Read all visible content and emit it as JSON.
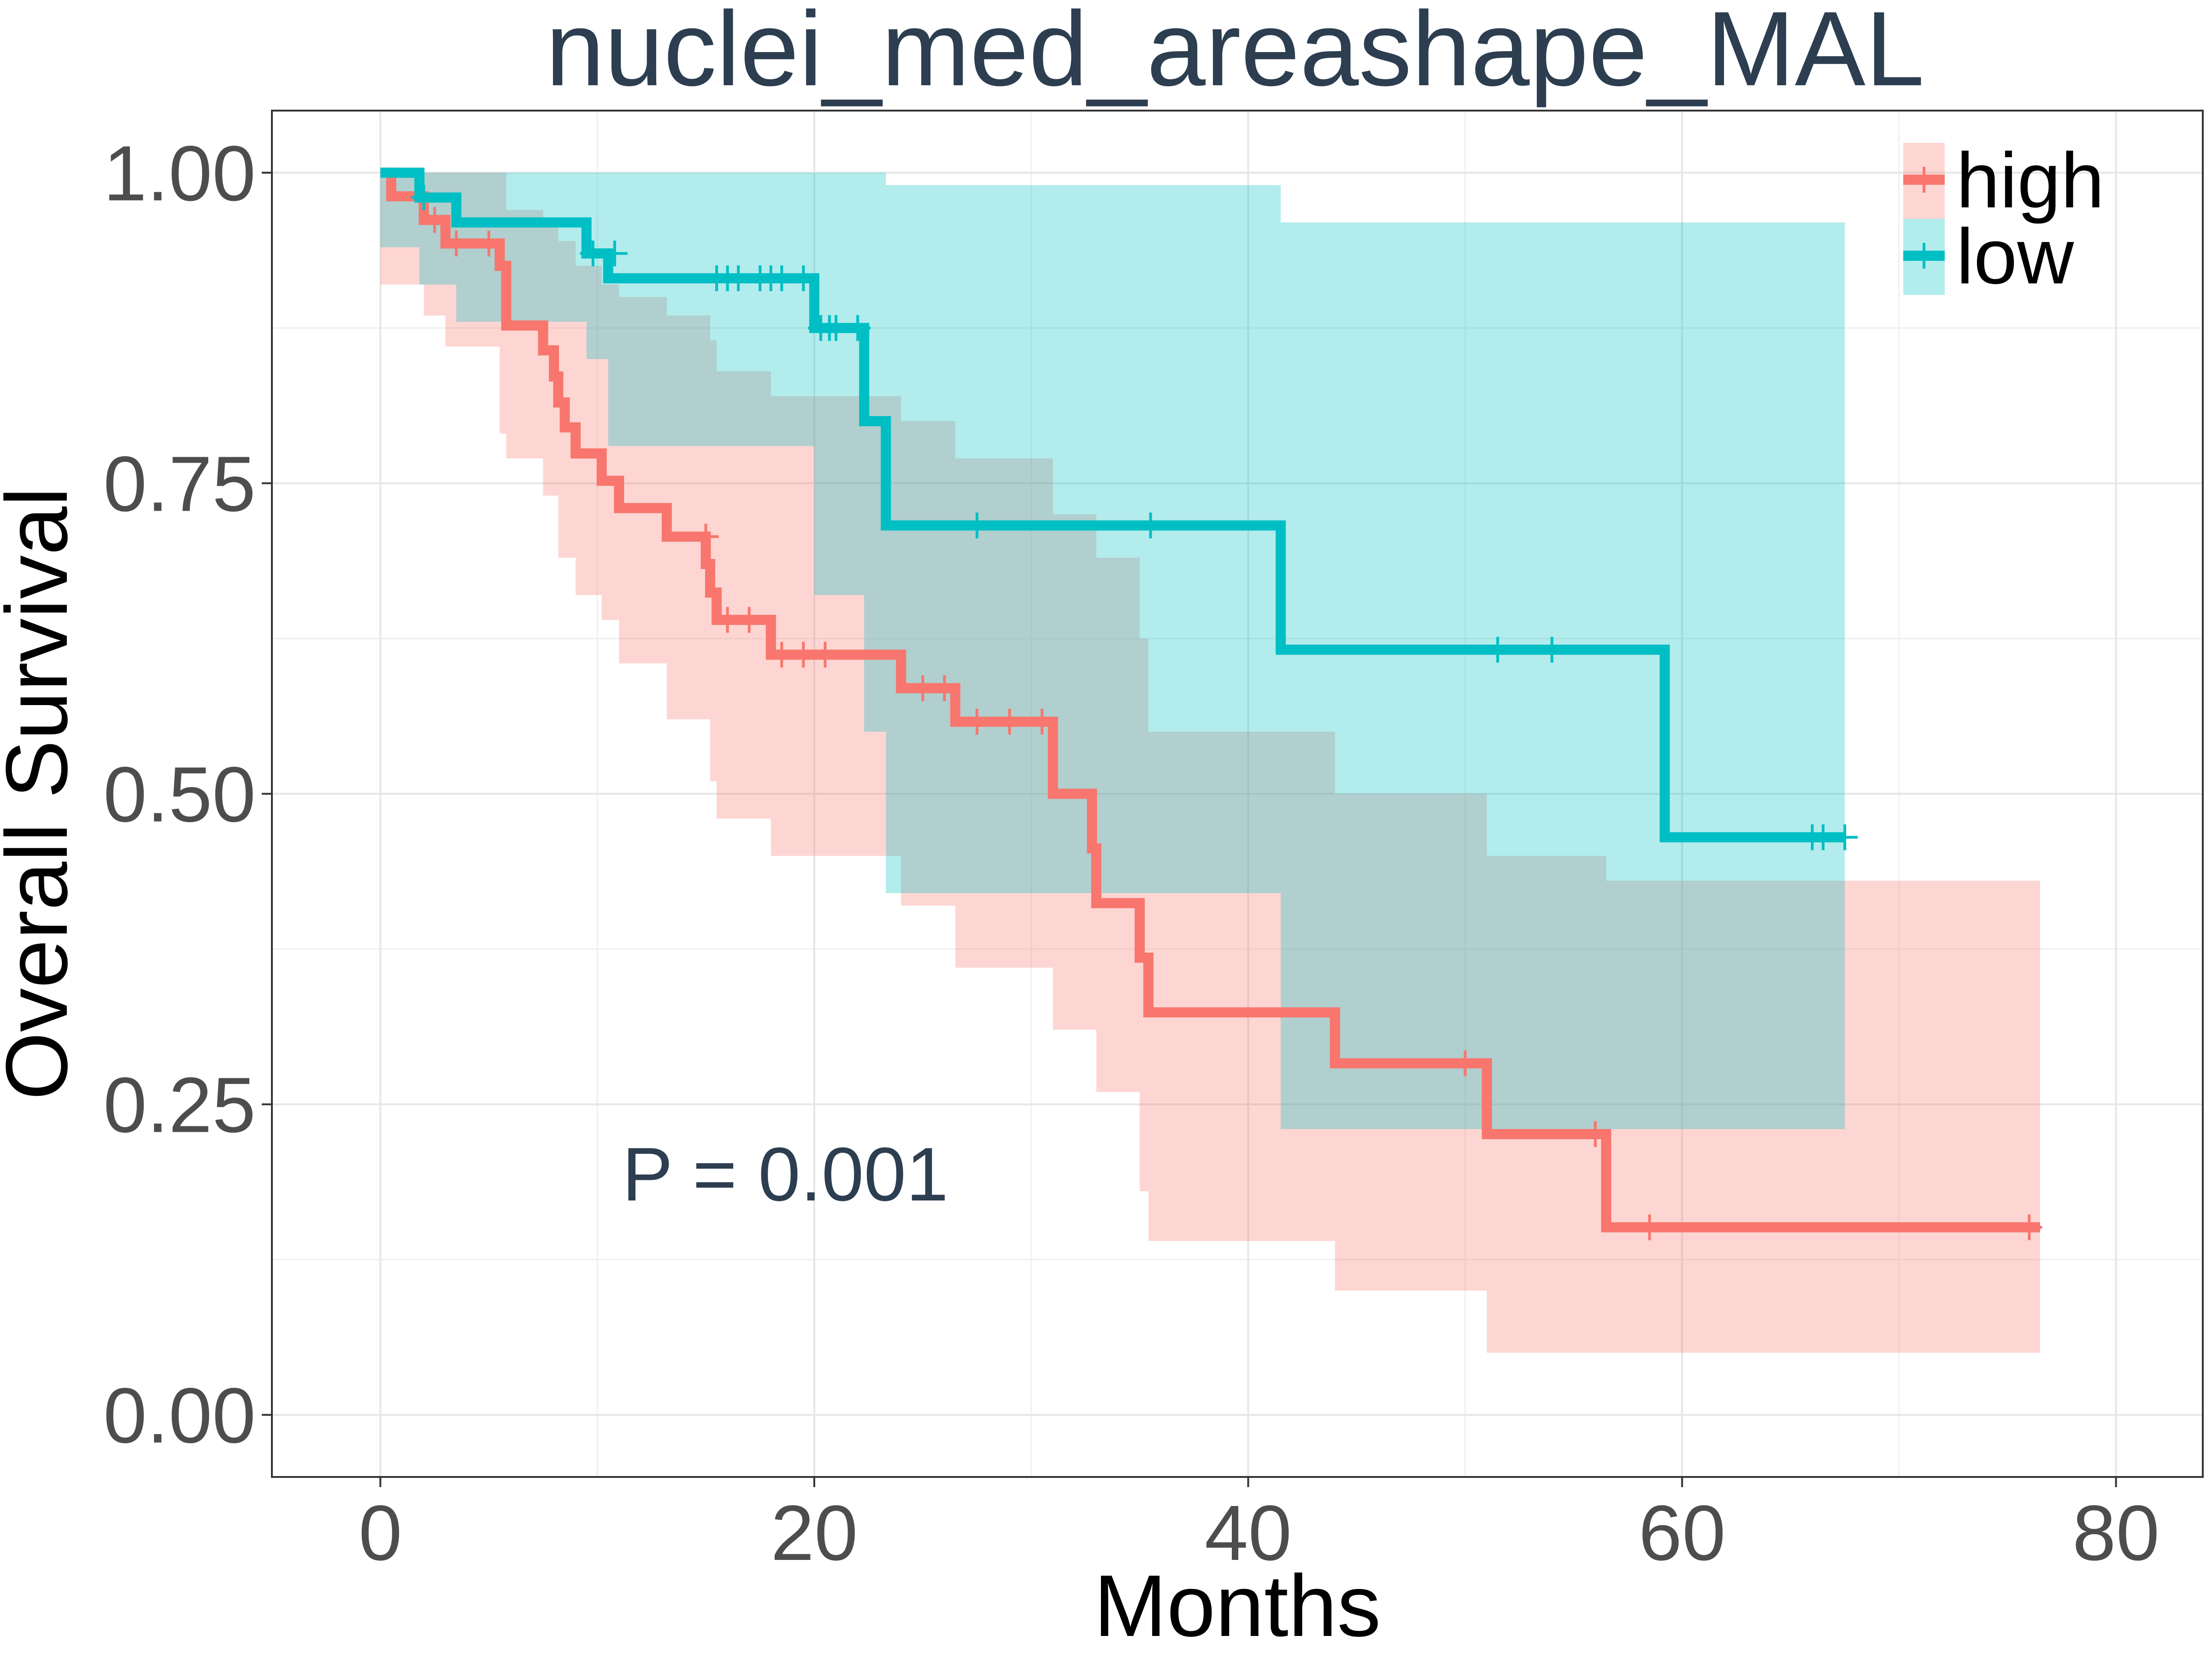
{
  "chart_data": {
    "type": "line",
    "title": "nuclei_med_areashape_MAL",
    "xlabel": "Months",
    "ylabel": "Overall Survival",
    "xlim": [
      -5,
      84
    ],
    "ylim": [
      -0.05,
      1.05
    ],
    "x_ticks": [
      0,
      20,
      40,
      60,
      80
    ],
    "x_tick_labels": [
      "0",
      "20",
      "40",
      "60",
      "80"
    ],
    "y_ticks": [
      0,
      0.25,
      0.5,
      0.75,
      1.0
    ],
    "y_tick_labels": [
      "0.00",
      "0.25",
      "0.50",
      "0.75",
      "1.00"
    ],
    "grid": true,
    "legend": {
      "position": "top-right",
      "entries": [
        "high",
        "low"
      ]
    },
    "annotation": "P = 0.001",
    "series": [
      {
        "name": "high",
        "color": "#F8766D",
        "fill": "#FBB4AE",
        "steps": [
          [
            0,
            1.0
          ],
          [
            0.5,
            0.981
          ],
          [
            2,
            0.962
          ],
          [
            3,
            0.943
          ],
          [
            5.5,
            0.925
          ],
          [
            5.8,
            0.877
          ],
          [
            7.5,
            0.857
          ],
          [
            8.0,
            0.836
          ],
          [
            8.2,
            0.815
          ],
          [
            8.5,
            0.795
          ],
          [
            9.0,
            0.774
          ],
          [
            10.2,
            0.752
          ],
          [
            11.0,
            0.73
          ],
          [
            13.2,
            0.707
          ],
          [
            15.0,
            0.685
          ],
          [
            15.2,
            0.662
          ],
          [
            15.5,
            0.64
          ],
          [
            18.0,
            0.612
          ],
          [
            24.0,
            0.585
          ],
          [
            26.5,
            0.558
          ],
          [
            31.0,
            0.5
          ],
          [
            32.8,
            0.456
          ],
          [
            33.0,
            0.412
          ],
          [
            35.0,
            0.368
          ],
          [
            35.4,
            0.324
          ],
          [
            44.0,
            0.283
          ],
          [
            51.0,
            0.226
          ],
          [
            56.5,
            0.151
          ],
          [
            76.5,
            0.151
          ]
        ],
        "lower": [
          [
            0,
            0.945
          ],
          [
            2,
            0.91
          ],
          [
            3,
            0.885
          ],
          [
            5.5,
            0.86
          ],
          [
            5.8,
            0.79
          ],
          [
            7.5,
            0.77
          ],
          [
            8.2,
            0.74
          ],
          [
            9.0,
            0.69
          ],
          [
            10.2,
            0.66
          ],
          [
            11.0,
            0.64
          ],
          [
            13.2,
            0.605
          ],
          [
            15.2,
            0.56
          ],
          [
            15.5,
            0.51
          ],
          [
            18.0,
            0.48
          ],
          [
            24.0,
            0.45
          ],
          [
            26.5,
            0.41
          ],
          [
            31.0,
            0.36
          ],
          [
            33.0,
            0.31
          ],
          [
            35.0,
            0.26
          ],
          [
            35.4,
            0.18
          ],
          [
            44.0,
            0.14
          ],
          [
            51.0,
            0.1
          ],
          [
            56.5,
            0.05
          ],
          [
            76.5,
            0.05
          ]
        ],
        "upper": [
          [
            0,
            1.0
          ],
          [
            5.5,
            1.0
          ],
          [
            5.8,
            0.97
          ],
          [
            7.5,
            0.96
          ],
          [
            8.2,
            0.945
          ],
          [
            9.0,
            0.925
          ],
          [
            10.2,
            0.91
          ],
          [
            11.0,
            0.9
          ],
          [
            13.2,
            0.885
          ],
          [
            15.2,
            0.865
          ],
          [
            15.5,
            0.84
          ],
          [
            18.0,
            0.82
          ],
          [
            24.0,
            0.8
          ],
          [
            26.5,
            0.77
          ],
          [
            31.0,
            0.725
          ],
          [
            33.0,
            0.69
          ],
          [
            35.0,
            0.625
          ],
          [
            35.4,
            0.55
          ],
          [
            44.0,
            0.5
          ],
          [
            51.0,
            0.45
          ],
          [
            56.5,
            0.43
          ],
          [
            76.5,
            0.43
          ]
        ],
        "censored": [
          [
            2.5,
            0.962
          ],
          [
            3.5,
            0.943
          ],
          [
            5.0,
            0.943
          ],
          [
            15.0,
            0.707
          ],
          [
            16.0,
            0.64
          ],
          [
            17.0,
            0.64
          ],
          [
            18.5,
            0.612
          ],
          [
            19.5,
            0.612
          ],
          [
            20.5,
            0.612
          ],
          [
            25.0,
            0.585
          ],
          [
            26.0,
            0.585
          ],
          [
            27.5,
            0.558
          ],
          [
            29.0,
            0.558
          ],
          [
            30.5,
            0.558
          ],
          [
            50.0,
            0.283
          ],
          [
            56.0,
            0.226
          ],
          [
            58.5,
            0.151
          ],
          [
            76.0,
            0.151
          ]
        ]
      },
      {
        "name": "low",
        "color": "#00BFC4",
        "fill": "#A8E8EA",
        "steps": [
          [
            0,
            1.0
          ],
          [
            1.8,
            0.98
          ],
          [
            3.5,
            0.96
          ],
          [
            9.5,
            0.935
          ],
          [
            10.5,
            0.915
          ],
          [
            20.0,
            0.875
          ],
          [
            22.3,
            0.8
          ],
          [
            23.3,
            0.716
          ],
          [
            41.5,
            0.616
          ],
          [
            59.2,
            0.465
          ],
          [
            67.5,
            0.465
          ]
        ],
        "lower": [
          [
            0,
            0.96
          ],
          [
            1.8,
            0.94
          ],
          [
            3.5,
            0.91
          ],
          [
            9.5,
            0.88
          ],
          [
            10.5,
            0.85
          ],
          [
            20.0,
            0.78
          ],
          [
            22.3,
            0.66
          ],
          [
            23.3,
            0.55
          ],
          [
            41.5,
            0.42
          ],
          [
            59.2,
            0.23
          ],
          [
            67.5,
            0.23
          ]
        ],
        "upper": [
          [
            0,
            1.0
          ],
          [
            20.0,
            1.0
          ],
          [
            22.3,
            1.0
          ],
          [
            23.3,
            0.99
          ],
          [
            41.5,
            0.96
          ],
          [
            59.2,
            0.96
          ],
          [
            67.5,
            0.96
          ]
        ],
        "censored": [
          [
            2.0,
            0.98
          ],
          [
            9.8,
            0.935
          ],
          [
            10.8,
            0.935
          ],
          [
            15.5,
            0.915
          ],
          [
            16.0,
            0.915
          ],
          [
            16.5,
            0.915
          ],
          [
            17.5,
            0.915
          ],
          [
            18.0,
            0.915
          ],
          [
            18.5,
            0.915
          ],
          [
            19.5,
            0.915
          ],
          [
            20.3,
            0.875
          ],
          [
            20.7,
            0.875
          ],
          [
            21.0,
            0.875
          ],
          [
            22.0,
            0.875
          ],
          [
            27.5,
            0.716
          ],
          [
            35.5,
            0.716
          ],
          [
            51.5,
            0.616
          ],
          [
            54.0,
            0.616
          ],
          [
            66.0,
            0.465
          ],
          [
            66.5,
            0.465
          ],
          [
            67.5,
            0.465
          ]
        ]
      }
    ]
  }
}
